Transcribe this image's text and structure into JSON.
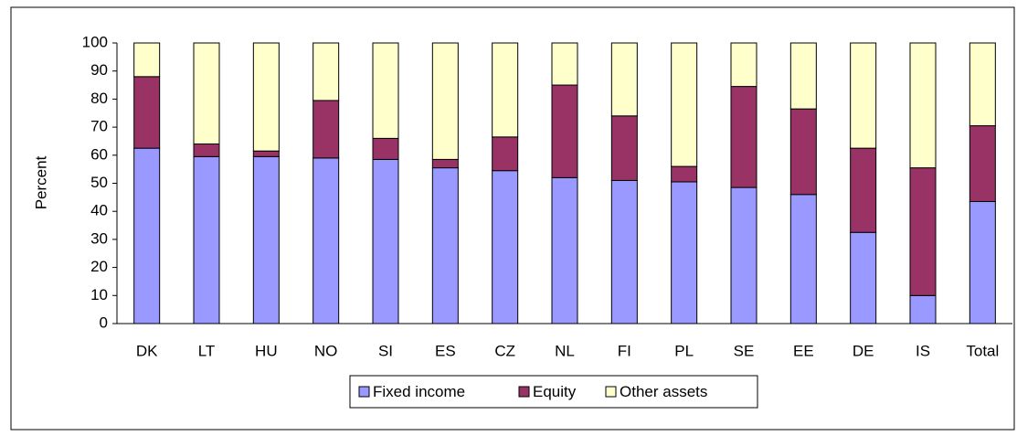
{
  "chart_data": {
    "type": "stacked_bar",
    "y_label": "Percent",
    "categories": [
      "DK",
      "LT",
      "HU",
      "NO",
      "SI",
      "ES",
      "CZ",
      "NL",
      "FI",
      "PL",
      "SE",
      "EE",
      "DE",
      "IS",
      "Total"
    ],
    "series": [
      {
        "name": "Fixed income",
        "color": "#9999ff",
        "values": [
          62.5,
          59.5,
          59.5,
          59,
          58.5,
          55.5,
          54.5,
          52,
          51,
          50.5,
          48.5,
          46,
          32.5,
          10,
          43.5
        ]
      },
      {
        "name": "Equity",
        "color": "#993366",
        "values": [
          25.5,
          4.5,
          2,
          20.5,
          7.5,
          3,
          12,
          33,
          23,
          5.5,
          36,
          30.5,
          30,
          45.5,
          27
        ]
      },
      {
        "name": "Other assets",
        "color": "#ffffcc",
        "values": [
          12,
          36,
          38.5,
          20.5,
          34,
          41.5,
          33.5,
          15,
          26,
          44,
          15.5,
          23.5,
          37.5,
          44.5,
          29.5
        ]
      }
    ],
    "ylim": [
      0,
      100
    ],
    "yticks": [
      0,
      10,
      20,
      30,
      40,
      50,
      60,
      70,
      80,
      90,
      100
    ],
    "legend": "bottom"
  }
}
